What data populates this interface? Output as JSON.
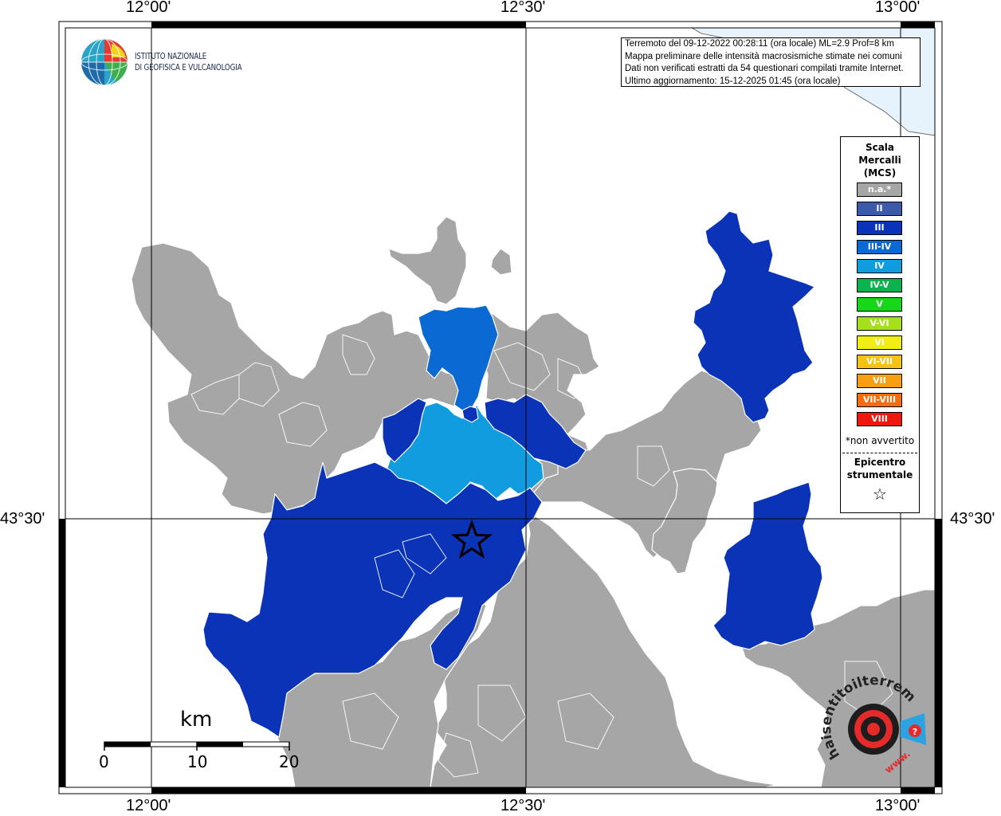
{
  "header": {
    "info_lines": [
      "Terremoto del 09-12-2022 00:28:11 (ora locale) ML=2.9 Prof=8 km",
      "Mappa preliminare delle intensità macrosismiche stimate nei comuni",
      "Dati non verificati estratti da 54 questionari compilati tramite Internet.",
      "Ultimo aggiornamento: 15-12-2025 01:45 (ora locale)"
    ]
  },
  "institute": {
    "line1": "ISTITUTO NAZIONALE",
    "line2": "DI GEOFISICA E VULCANOLOGIA"
  },
  "coordinates": {
    "lon_labels": [
      "12°00'",
      "12°30'",
      "13°00'"
    ],
    "lat_labels": [
      "43°30'"
    ]
  },
  "legend": {
    "title": "Scala\nMercalli\n(MCS)",
    "items": [
      {
        "label": "n.a.*",
        "color": "#a6a6a6"
      },
      {
        "label": "II",
        "color": "#3b5ba9"
      },
      {
        "label": "III",
        "color": "#0a33b8"
      },
      {
        "label": "III-IV",
        "color": "#0b69d4"
      },
      {
        "label": "IV",
        "color": "#129ce0"
      },
      {
        "label": "IV-V",
        "color": "#0ab34e"
      },
      {
        "label": "V",
        "color": "#16d71a"
      },
      {
        "label": "V-VI",
        "color": "#a6e01c"
      },
      {
        "label": "VI",
        "color": "#f2ee14"
      },
      {
        "label": "VI-VII",
        "color": "#f4c313"
      },
      {
        "label": "VII",
        "color": "#f59f11"
      },
      {
        "label": "VII-VIII",
        "color": "#f66d11"
      },
      {
        "label": "VIII",
        "color": "#f0170f"
      }
    ],
    "note": "*non avvertito",
    "epicenter_label": "Epicentro\nstrumentale"
  },
  "scale_bar": {
    "unit": "km",
    "labels": [
      "0",
      "10",
      "20"
    ]
  },
  "badge": {
    "text": "haisentitoilterremoto.it",
    "www": "www."
  },
  "colors": {
    "na": "#a6a6a6",
    "iii": "#0a33b8",
    "iii_iv": "#0b69d4",
    "iv": "#129ce0",
    "sea": "#e6f2fc"
  }
}
